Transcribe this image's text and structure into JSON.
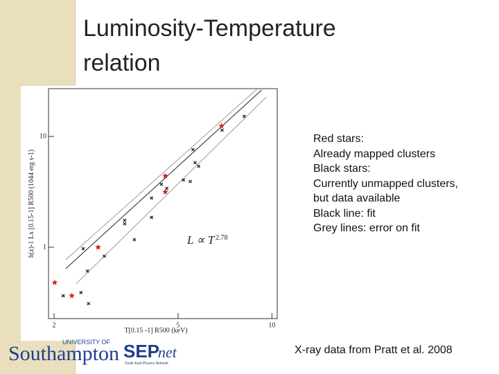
{
  "slide": {
    "title": [
      "Luminosity-Temperature",
      "relation"
    ],
    "notes": [
      "Red stars:",
      "Already mapped clusters",
      "Black stars:",
      "Currently unmapped clusters,",
      "but data available",
      "Black line: fit",
      "Grey lines: error on fit"
    ],
    "footer": "X-ray data from Pratt et al. 2008",
    "logos": {
      "university_of": "UNIVERSITY OF",
      "southampton": "Southampton",
      "sep": "SEP",
      "net": "net",
      "sepnet_sub": "South East Physics Network"
    }
  },
  "chart_data": {
    "type": "scatter",
    "x_label": "T[0.15 -1] R500 (keV)",
    "y_label": "h(z)-1 Lx [0.15-1] R500 (1044 erg s-1)",
    "annotation": "L ∝ T",
    "annotation_exponent": "2.78",
    "log_x": true,
    "log_y": true,
    "xlim": [
      1.92,
      10.4
    ],
    "ylim": [
      0.227,
      27
    ],
    "xticks": [
      2,
      5,
      10
    ],
    "yticks": [
      1,
      10
    ],
    "series": [
      {
        "marker": "star",
        "color": "#d42020",
        "x": [
          2.01,
          2.28,
          2.77,
          4.55,
          4.55,
          6.89
        ],
        "values": [
          0.48,
          0.365,
          1.0,
          3.16,
          4.4,
          12.4
        ]
      },
      {
        "marker": "cross",
        "color": "#1a1a1a",
        "x": [
          2.14,
          2.48,
          2.44,
          2.56,
          2.58,
          2.9,
          3.37,
          3.37,
          3.62,
          4.11,
          4.11,
          4.42,
          4.6,
          5.2,
          5.47,
          5.58,
          5.67,
          5.82,
          6.92,
          8.15
        ],
        "values": [
          0.365,
          0.97,
          0.39,
          0.61,
          0.31,
          0.83,
          1.75,
          1.63,
          1.17,
          2.78,
          1.86,
          3.7,
          3.4,
          4.04,
          3.92,
          7.6,
          5.79,
          5.38,
          11.4,
          15.2
        ]
      }
    ],
    "lines": [
      {
        "color": "#222222",
        "x": [
          2.18,
          9.26
        ],
        "values": [
          0.64,
          26.2
        ]
      },
      {
        "color": "#9a9a9a",
        "x": [
          2.18,
          8.98
        ],
        "values": [
          0.77,
          27
        ]
      },
      {
        "color": "#9a9a9a",
        "x": [
          2.36,
          9.6
        ],
        "values": [
          0.47,
          22.7
        ]
      }
    ]
  }
}
